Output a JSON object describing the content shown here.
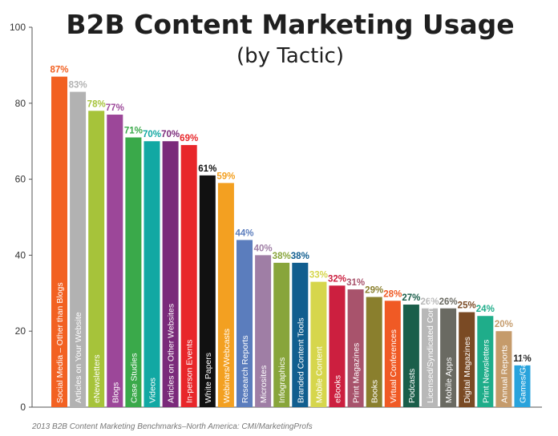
{
  "chart_data": {
    "type": "bar",
    "title": "B2B Content Marketing Usage",
    "subtitle": "(by Tactic)",
    "ylim": [
      0,
      100
    ],
    "yticks": [
      0,
      20,
      40,
      60,
      80,
      100
    ],
    "grid": false,
    "categories": [
      "Social Media – Other than Blogs",
      "Articles on Your Website",
      "eNewsletters",
      "Blogs",
      "Case Studies",
      "Videos",
      "Articles on Other Websites",
      "In-person Events",
      "White Papers",
      "Webinars/Webcasts",
      "Research Reports",
      "Microsites",
      "Infographics",
      "Branded Content Tools",
      "Mobile Content",
      "eBooks",
      "Print Magazines",
      "Books",
      "Virtual Conferences",
      "Podcasts",
      "Licensed/Syndicated Content",
      "Mobile Apps",
      "Digital Magazines",
      "Print Newsletters",
      "Annual Reports",
      "Games/Gamification"
    ],
    "values": [
      87,
      83,
      78,
      77,
      71,
      70,
      70,
      69,
      61,
      59,
      44,
      40,
      38,
      38,
      33,
      32,
      31,
      29,
      28,
      27,
      26,
      26,
      25,
      24,
      20,
      11
    ],
    "value_labels": [
      "87%",
      "83%",
      "78%",
      "77%",
      "71%",
      "70%",
      "70%",
      "69%",
      "61%",
      "59%",
      "44%",
      "40%",
      "38%",
      "38%",
      "33%",
      "32%",
      "31%",
      "29%",
      "28%",
      "27%",
      "26%",
      "26%",
      "25%",
      "24%",
      "20%",
      "11%"
    ],
    "colors": [
      "#f26122",
      "#b2b2b2",
      "#a6c33a",
      "#9c4799",
      "#3aa94a",
      "#12a8a3",
      "#7a2a7a",
      "#e8262a",
      "#111111",
      "#f3a021",
      "#5b7dbd",
      "#9f7ea5",
      "#88a53b",
      "#115e8f",
      "#d6d64c",
      "#cc1f3f",
      "#a8536c",
      "#8a7f2d",
      "#f05a25",
      "#1a5e4a",
      "#b8b8b8",
      "#6a6a62",
      "#7a4a24",
      "#1fad8a",
      "#c59b6b",
      "#29a3dc"
    ],
    "label_colors": [
      "#f26122",
      "#b2b2b2",
      "#a6c33a",
      "#9c4799",
      "#3aa94a",
      "#12a8a3",
      "#7a2a7a",
      "#e8262a",
      "#111111",
      "#f3a021",
      "#5b7dbd",
      "#9f7ea5",
      "#88a53b",
      "#115e8f",
      "#d6d64c",
      "#cc1f3f",
      "#a8536c",
      "#8a7f2d",
      "#f05a25",
      "#1a5e4a",
      "#b8b8b8",
      "#6a6a62",
      "#7a4a24",
      "#1fad8a",
      "#c59b6b",
      "#222222"
    ]
  },
  "source": "2013 B2B Content Marketing Benchmarks–North America: CMI/MarketingProfs"
}
